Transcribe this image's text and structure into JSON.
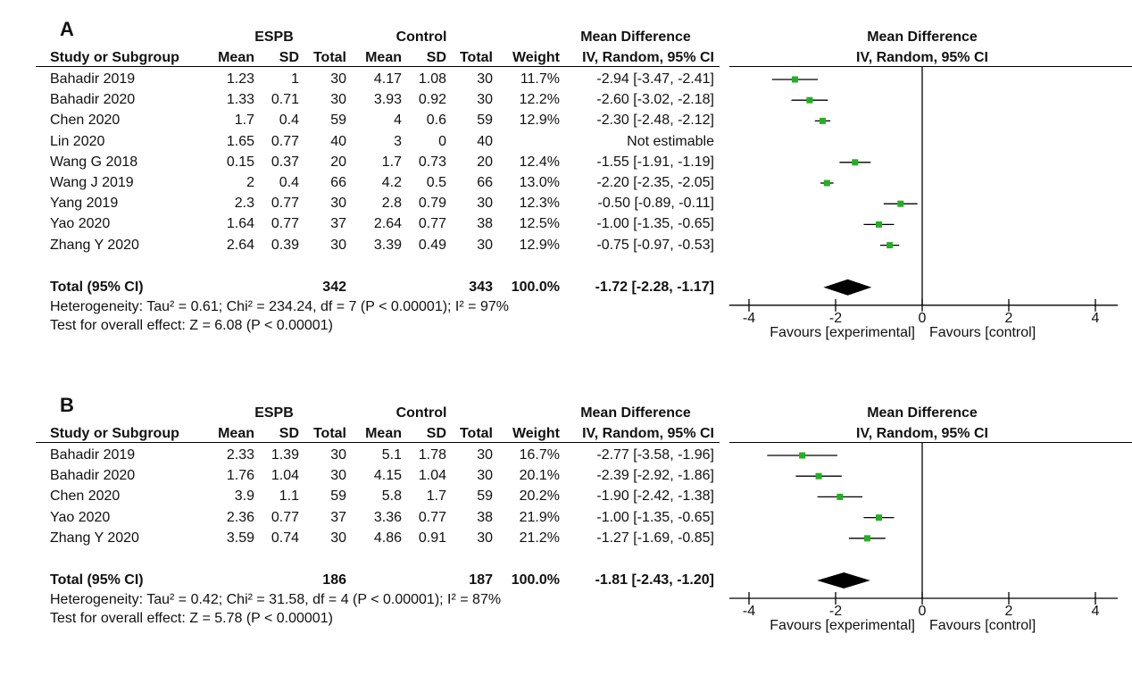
{
  "chart_data": [
    {
      "type": "forest",
      "panel_label": "A",
      "groups": {
        "experimental": "ESPB",
        "control": "Control"
      },
      "columns": [
        "Study or Subgroup",
        "Mean",
        "SD",
        "Total",
        "Mean",
        "SD",
        "Total",
        "Weight",
        "IV, Random, 95% CI"
      ],
      "effect_header": "Mean Difference",
      "effect_subheader": "IV, Random, 95% CI",
      "plot_header": "Mean Difference",
      "plot_subheader": "IV, Random, 95% CI",
      "studies": [
        {
          "name": "Bahadir 2019",
          "e_mean": "1.23",
          "e_sd": "1",
          "e_total": "30",
          "c_mean": "4.17",
          "c_sd": "1.08",
          "c_total": "30",
          "weight": "11.7%",
          "ci_text": "-2.94 [-3.47, -2.41]",
          "md": -2.94,
          "lo": -3.47,
          "hi": -2.41
        },
        {
          "name": "Bahadir 2020",
          "e_mean": "1.33",
          "e_sd": "0.71",
          "e_total": "30",
          "c_mean": "3.93",
          "c_sd": "0.92",
          "c_total": "30",
          "weight": "12.2%",
          "ci_text": "-2.60 [-3.02, -2.18]",
          "md": -2.6,
          "lo": -3.02,
          "hi": -2.18
        },
        {
          "name": "Chen 2020",
          "e_mean": "1.7",
          "e_sd": "0.4",
          "e_total": "59",
          "c_mean": "4",
          "c_sd": "0.6",
          "c_total": "59",
          "weight": "12.9%",
          "ci_text": "-2.30 [-2.48, -2.12]",
          "md": -2.3,
          "lo": -2.48,
          "hi": -2.12
        },
        {
          "name": "Lin 2020",
          "e_mean": "1.65",
          "e_sd": "0.77",
          "e_total": "40",
          "c_mean": "3",
          "c_sd": "0",
          "c_total": "40",
          "weight": "",
          "ci_text": "Not estimable",
          "md": null,
          "lo": null,
          "hi": null
        },
        {
          "name": "Wang G 2018",
          "e_mean": "0.15",
          "e_sd": "0.37",
          "e_total": "20",
          "c_mean": "1.7",
          "c_sd": "0.73",
          "c_total": "20",
          "weight": "12.4%",
          "ci_text": "-1.55 [-1.91, -1.19]",
          "md": -1.55,
          "lo": -1.91,
          "hi": -1.19
        },
        {
          "name": "Wang J 2019",
          "e_mean": "2",
          "e_sd": "0.4",
          "e_total": "66",
          "c_mean": "4.2",
          "c_sd": "0.5",
          "c_total": "66",
          "weight": "13.0%",
          "ci_text": "-2.20 [-2.35, -2.05]",
          "md": -2.2,
          "lo": -2.35,
          "hi": -2.05
        },
        {
          "name": "Yang 2019",
          "e_mean": "2.3",
          "e_sd": "0.77",
          "e_total": "30",
          "c_mean": "2.8",
          "c_sd": "0.79",
          "c_total": "30",
          "weight": "12.3%",
          "ci_text": "-0.50 [-0.89, -0.11]",
          "md": -0.5,
          "lo": -0.89,
          "hi": -0.11
        },
        {
          "name": "Yao 2020",
          "e_mean": "1.64",
          "e_sd": "0.77",
          "e_total": "37",
          "c_mean": "2.64",
          "c_sd": "0.77",
          "c_total": "38",
          "weight": "12.5%",
          "ci_text": "-1.00 [-1.35, -0.65]",
          "md": -1.0,
          "lo": -1.35,
          "hi": -0.65
        },
        {
          "name": "Zhang Y 2020",
          "e_mean": "2.64",
          "e_sd": "0.39",
          "e_total": "30",
          "c_mean": "3.39",
          "c_sd": "0.49",
          "c_total": "30",
          "weight": "12.9%",
          "ci_text": "-0.75 [-0.97, -0.53]",
          "md": -0.75,
          "lo": -0.97,
          "hi": -0.53
        }
      ],
      "total": {
        "label": "Total (95% CI)",
        "e_total": "342",
        "c_total": "343",
        "weight": "100.0%",
        "ci_text": "-1.72 [-2.28, -1.17]",
        "md": -1.72,
        "lo": -2.28,
        "hi": -1.17
      },
      "heterogeneity": "Heterogeneity: Tau² = 0.61; Chi² = 234.24, df = 7 (P < 0.00001); I² = 97%",
      "overall_effect": "Test for overall effect: Z = 6.08 (P < 0.00001)",
      "x_ticks": [
        -4,
        -2,
        0,
        2,
        4
      ],
      "xlim": [
        -4,
        4
      ],
      "favours_left": "Favours [experimental]",
      "favours_right": "Favours [control]",
      "colors": {
        "marker": "#22b022",
        "diamond": "#000000",
        "line": "#000000"
      }
    },
    {
      "type": "forest",
      "panel_label": "B",
      "groups": {
        "experimental": "ESPB",
        "control": "Control"
      },
      "columns": [
        "Study or Subgroup",
        "Mean",
        "SD",
        "Total",
        "Mean",
        "SD",
        "Total",
        "Weight",
        "IV, Random, 95% CI"
      ],
      "effect_header": "Mean Difference",
      "effect_subheader": "IV, Random, 95% CI",
      "plot_header": "Mean Difference",
      "plot_subheader": "IV, Random, 95% CI",
      "studies": [
        {
          "name": "Bahadir 2019",
          "e_mean": "2.33",
          "e_sd": "1.39",
          "e_total": "30",
          "c_mean": "5.1",
          "c_sd": "1.78",
          "c_total": "30",
          "weight": "16.7%",
          "ci_text": "-2.77 [-3.58, -1.96]",
          "md": -2.77,
          "lo": -3.58,
          "hi": -1.96
        },
        {
          "name": "Bahadir 2020",
          "e_mean": "1.76",
          "e_sd": "1.04",
          "e_total": "30",
          "c_mean": "4.15",
          "c_sd": "1.04",
          "c_total": "30",
          "weight": "20.1%",
          "ci_text": "-2.39 [-2.92, -1.86]",
          "md": -2.39,
          "lo": -2.92,
          "hi": -1.86
        },
        {
          "name": "Chen 2020",
          "e_mean": "3.9",
          "e_sd": "1.1",
          "e_total": "59",
          "c_mean": "5.8",
          "c_sd": "1.7",
          "c_total": "59",
          "weight": "20.2%",
          "ci_text": "-1.90 [-2.42, -1.38]",
          "md": -1.9,
          "lo": -2.42,
          "hi": -1.38
        },
        {
          "name": "Yao 2020",
          "e_mean": "2.36",
          "e_sd": "0.77",
          "e_total": "37",
          "c_mean": "3.36",
          "c_sd": "0.77",
          "c_total": "38",
          "weight": "21.9%",
          "ci_text": "-1.00 [-1.35, -0.65]",
          "md": -1.0,
          "lo": -1.35,
          "hi": -0.65
        },
        {
          "name": "Zhang Y 2020",
          "e_mean": "3.59",
          "e_sd": "0.74",
          "e_total": "30",
          "c_mean": "4.86",
          "c_sd": "0.91",
          "c_total": "30",
          "weight": "21.2%",
          "ci_text": "-1.27 [-1.69, -0.85]",
          "md": -1.27,
          "lo": -1.69,
          "hi": -0.85
        }
      ],
      "total": {
        "label": "Total (95% CI)",
        "e_total": "186",
        "c_total": "187",
        "weight": "100.0%",
        "ci_text": "-1.81 [-2.43, -1.20]",
        "md": -1.81,
        "lo": -2.43,
        "hi": -1.2
      },
      "heterogeneity": "Heterogeneity: Tau² = 0.42; Chi² = 31.58, df = 4 (P < 0.00001); I² = 87%",
      "overall_effect": "Test for overall effect: Z = 5.78 (P < 0.00001)",
      "x_ticks": [
        -4,
        -2,
        0,
        2,
        4
      ],
      "xlim": [
        -4,
        4
      ],
      "favours_left": "Favours [experimental]",
      "favours_right": "Favours [control]",
      "colors": {
        "marker": "#22b022",
        "diamond": "#000000",
        "line": "#000000"
      }
    }
  ]
}
